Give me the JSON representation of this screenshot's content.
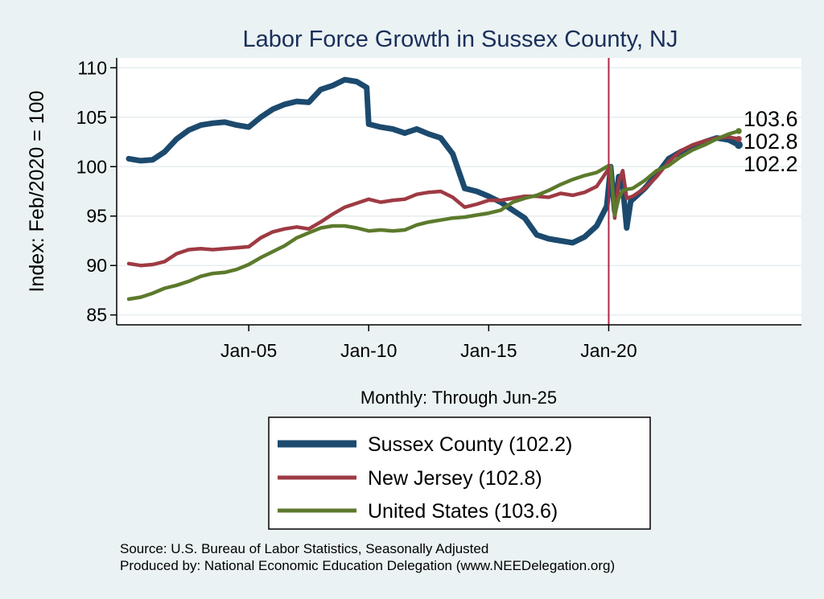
{
  "chart_data": {
    "type": "line",
    "title": "Labor Force Growth in Sussex  County, NJ",
    "xlabel": "Monthly: Through Jun-25",
    "ylabel": "Index: Feb/2020 = 100",
    "x_range": [
      "Jan-00",
      "Jun-25"
    ],
    "ylim": [
      84,
      111
    ],
    "y_ticks": [
      85,
      90,
      95,
      100,
      105,
      110
    ],
    "x_ticks": [
      "Jan-05",
      "Jan-10",
      "Jan-15",
      "Jan-20"
    ],
    "reference_line": {
      "x": "Jan-20",
      "color": "#b0294a"
    },
    "grid": true,
    "legend_position": "bottom",
    "end_labels": [
      "103.6",
      "102.8",
      "102.2"
    ],
    "series": [
      {
        "name": "Sussex  County (102.2)",
        "color": "#1c4a6e",
        "points": [
          [
            "Jan-00",
            100.8
          ],
          [
            "Jul-00",
            100.6
          ],
          [
            "Jan-01",
            100.7
          ],
          [
            "Jul-01",
            101.5
          ],
          [
            "Jan-02",
            102.8
          ],
          [
            "Jul-02",
            103.7
          ],
          [
            "Jan-03",
            104.2
          ],
          [
            "Jul-03",
            104.4
          ],
          [
            "Jan-04",
            104.5
          ],
          [
            "Jul-04",
            104.2
          ],
          [
            "Jan-05",
            104.0
          ],
          [
            "Jul-05",
            105.0
          ],
          [
            "Jan-06",
            105.8
          ],
          [
            "Jul-06",
            106.3
          ],
          [
            "Jan-07",
            106.6
          ],
          [
            "Jul-07",
            106.5
          ],
          [
            "Jan-08",
            107.8
          ],
          [
            "Jul-08",
            108.2
          ],
          [
            "Jan-09",
            108.8
          ],
          [
            "Jul-09",
            108.6
          ],
          [
            "Dec-09",
            108.0
          ],
          [
            "Jan-10",
            104.3
          ],
          [
            "Jul-10",
            104.0
          ],
          [
            "Jan-11",
            103.8
          ],
          [
            "Jul-11",
            103.4
          ],
          [
            "Jan-12",
            103.8
          ],
          [
            "Jul-12",
            103.3
          ],
          [
            "Jan-13",
            102.9
          ],
          [
            "Jul-13",
            101.3
          ],
          [
            "Jan-14",
            97.8
          ],
          [
            "Jul-14",
            97.5
          ],
          [
            "Jan-15",
            97.0
          ],
          [
            "Jul-15",
            96.4
          ],
          [
            "Jan-16",
            95.6
          ],
          [
            "Jul-16",
            94.8
          ],
          [
            "Jan-17",
            93.1
          ],
          [
            "Jul-17",
            92.7
          ],
          [
            "Jan-18",
            92.5
          ],
          [
            "Jul-18",
            92.3
          ],
          [
            "Jan-19",
            92.9
          ],
          [
            "Jul-19",
            94.0
          ],
          [
            "Dec-19",
            96.0
          ],
          [
            "Feb-20",
            100.0
          ],
          [
            "Apr-20",
            95.5
          ],
          [
            "Jun-20",
            99.0
          ],
          [
            "Aug-20",
            98.0
          ],
          [
            "Oct-20",
            93.8
          ],
          [
            "Dec-20",
            96.5
          ],
          [
            "Jul-21",
            97.8
          ],
          [
            "Jan-22",
            99.2
          ],
          [
            "Jul-22",
            100.8
          ],
          [
            "Jan-23",
            101.5
          ],
          [
            "Jul-23",
            102.0
          ],
          [
            "Jan-24",
            102.5
          ],
          [
            "Jul-24",
            102.9
          ],
          [
            "Jan-25",
            102.7
          ],
          [
            "Jun-25",
            102.2
          ]
        ]
      },
      {
        "name": "New Jersey (102.8)",
        "color": "#9e3a43",
        "points": [
          [
            "Jan-00",
            90.2
          ],
          [
            "Jul-00",
            90.0
          ],
          [
            "Jan-01",
            90.1
          ],
          [
            "Jul-01",
            90.4
          ],
          [
            "Jan-02",
            91.2
          ],
          [
            "Jul-02",
            91.6
          ],
          [
            "Jan-03",
            91.7
          ],
          [
            "Jul-03",
            91.6
          ],
          [
            "Jan-04",
            91.7
          ],
          [
            "Jul-04",
            91.8
          ],
          [
            "Jan-05",
            91.9
          ],
          [
            "Jul-05",
            92.8
          ],
          [
            "Jan-06",
            93.4
          ],
          [
            "Jul-06",
            93.7
          ],
          [
            "Jan-07",
            93.9
          ],
          [
            "Jul-07",
            93.7
          ],
          [
            "Jan-08",
            94.4
          ],
          [
            "Jul-08",
            95.2
          ],
          [
            "Jan-09",
            95.9
          ],
          [
            "Jul-09",
            96.3
          ],
          [
            "Jan-10",
            96.7
          ],
          [
            "Jul-10",
            96.4
          ],
          [
            "Jan-11",
            96.6
          ],
          [
            "Jul-11",
            96.7
          ],
          [
            "Jan-12",
            97.2
          ],
          [
            "Jul-12",
            97.4
          ],
          [
            "Jan-13",
            97.5
          ],
          [
            "Jul-13",
            96.9
          ],
          [
            "Jan-14",
            95.9
          ],
          [
            "Jul-14",
            96.2
          ],
          [
            "Jan-15",
            96.6
          ],
          [
            "Jul-15",
            96.6
          ],
          [
            "Jan-16",
            96.8
          ],
          [
            "Jul-16",
            97.0
          ],
          [
            "Jan-17",
            97.0
          ],
          [
            "Jul-17",
            96.9
          ],
          [
            "Jan-18",
            97.3
          ],
          [
            "Jul-18",
            97.1
          ],
          [
            "Jan-19",
            97.4
          ],
          [
            "Jul-19",
            98.0
          ],
          [
            "Jan-20",
            99.8
          ],
          [
            "Feb-20",
            100.0
          ],
          [
            "Apr-20",
            94.8
          ],
          [
            "Jun-20",
            98.5
          ],
          [
            "Aug-20",
            99.6
          ],
          [
            "Oct-20",
            96.8
          ],
          [
            "Jan-21",
            97.0
          ],
          [
            "Jul-21",
            97.8
          ],
          [
            "Jan-22",
            99.0
          ],
          [
            "Jul-22",
            100.5
          ],
          [
            "Jan-23",
            101.6
          ],
          [
            "Jul-23",
            102.2
          ],
          [
            "Jan-24",
            102.6
          ],
          [
            "Jul-24",
            102.9
          ],
          [
            "Jan-25",
            103.0
          ],
          [
            "Jun-25",
            102.8
          ]
        ]
      },
      {
        "name": "United States (103.6)",
        "color": "#5c7a2c",
        "points": [
          [
            "Jan-00",
            86.6
          ],
          [
            "Jul-00",
            86.8
          ],
          [
            "Jan-01",
            87.2
          ],
          [
            "Jul-01",
            87.7
          ],
          [
            "Jan-02",
            88.0
          ],
          [
            "Jul-02",
            88.4
          ],
          [
            "Jan-03",
            88.9
          ],
          [
            "Jul-03",
            89.2
          ],
          [
            "Jan-04",
            89.3
          ],
          [
            "Jul-04",
            89.6
          ],
          [
            "Jan-05",
            90.1
          ],
          [
            "Jul-05",
            90.8
          ],
          [
            "Jan-06",
            91.4
          ],
          [
            "Jul-06",
            92.0
          ],
          [
            "Jan-07",
            92.8
          ],
          [
            "Jul-07",
            93.3
          ],
          [
            "Jan-08",
            93.8
          ],
          [
            "Jul-08",
            94.0
          ],
          [
            "Jan-09",
            94.0
          ],
          [
            "Jul-09",
            93.8
          ],
          [
            "Jan-10",
            93.5
          ],
          [
            "Jul-10",
            93.6
          ],
          [
            "Jan-11",
            93.5
          ],
          [
            "Jul-11",
            93.6
          ],
          [
            "Jan-12",
            94.1
          ],
          [
            "Jul-12",
            94.4
          ],
          [
            "Jan-13",
            94.6
          ],
          [
            "Jul-13",
            94.8
          ],
          [
            "Jan-14",
            94.9
          ],
          [
            "Jul-14",
            95.1
          ],
          [
            "Jan-15",
            95.3
          ],
          [
            "Jul-15",
            95.6
          ],
          [
            "Jan-16",
            96.4
          ],
          [
            "Jul-16",
            96.8
          ],
          [
            "Jan-17",
            97.1
          ],
          [
            "Jul-17",
            97.6
          ],
          [
            "Jan-18",
            98.2
          ],
          [
            "Jul-18",
            98.7
          ],
          [
            "Jan-19",
            99.1
          ],
          [
            "Jul-19",
            99.4
          ],
          [
            "Jan-20",
            100.1
          ],
          [
            "Feb-20",
            100.0
          ],
          [
            "Apr-20",
            95.1
          ],
          [
            "Jun-20",
            96.8
          ],
          [
            "Aug-20",
            97.6
          ],
          [
            "Oct-20",
            97.7
          ],
          [
            "Jan-21",
            97.8
          ],
          [
            "Jul-21",
            98.6
          ],
          [
            "Jan-22",
            99.6
          ],
          [
            "Jul-22",
            100.1
          ],
          [
            "Jan-23",
            101.0
          ],
          [
            "Jul-23",
            101.7
          ],
          [
            "Jan-24",
            102.2
          ],
          [
            "Jul-24",
            102.8
          ],
          [
            "Jan-25",
            103.3
          ],
          [
            "Jun-25",
            103.6
          ]
        ]
      }
    ],
    "notes": [
      "Source: U.S. Bureau of Labor Statistics, Seasonally Adjusted",
      "Produced by: National Economic Education Delegation (www.NEEDelegation.org)"
    ]
  }
}
